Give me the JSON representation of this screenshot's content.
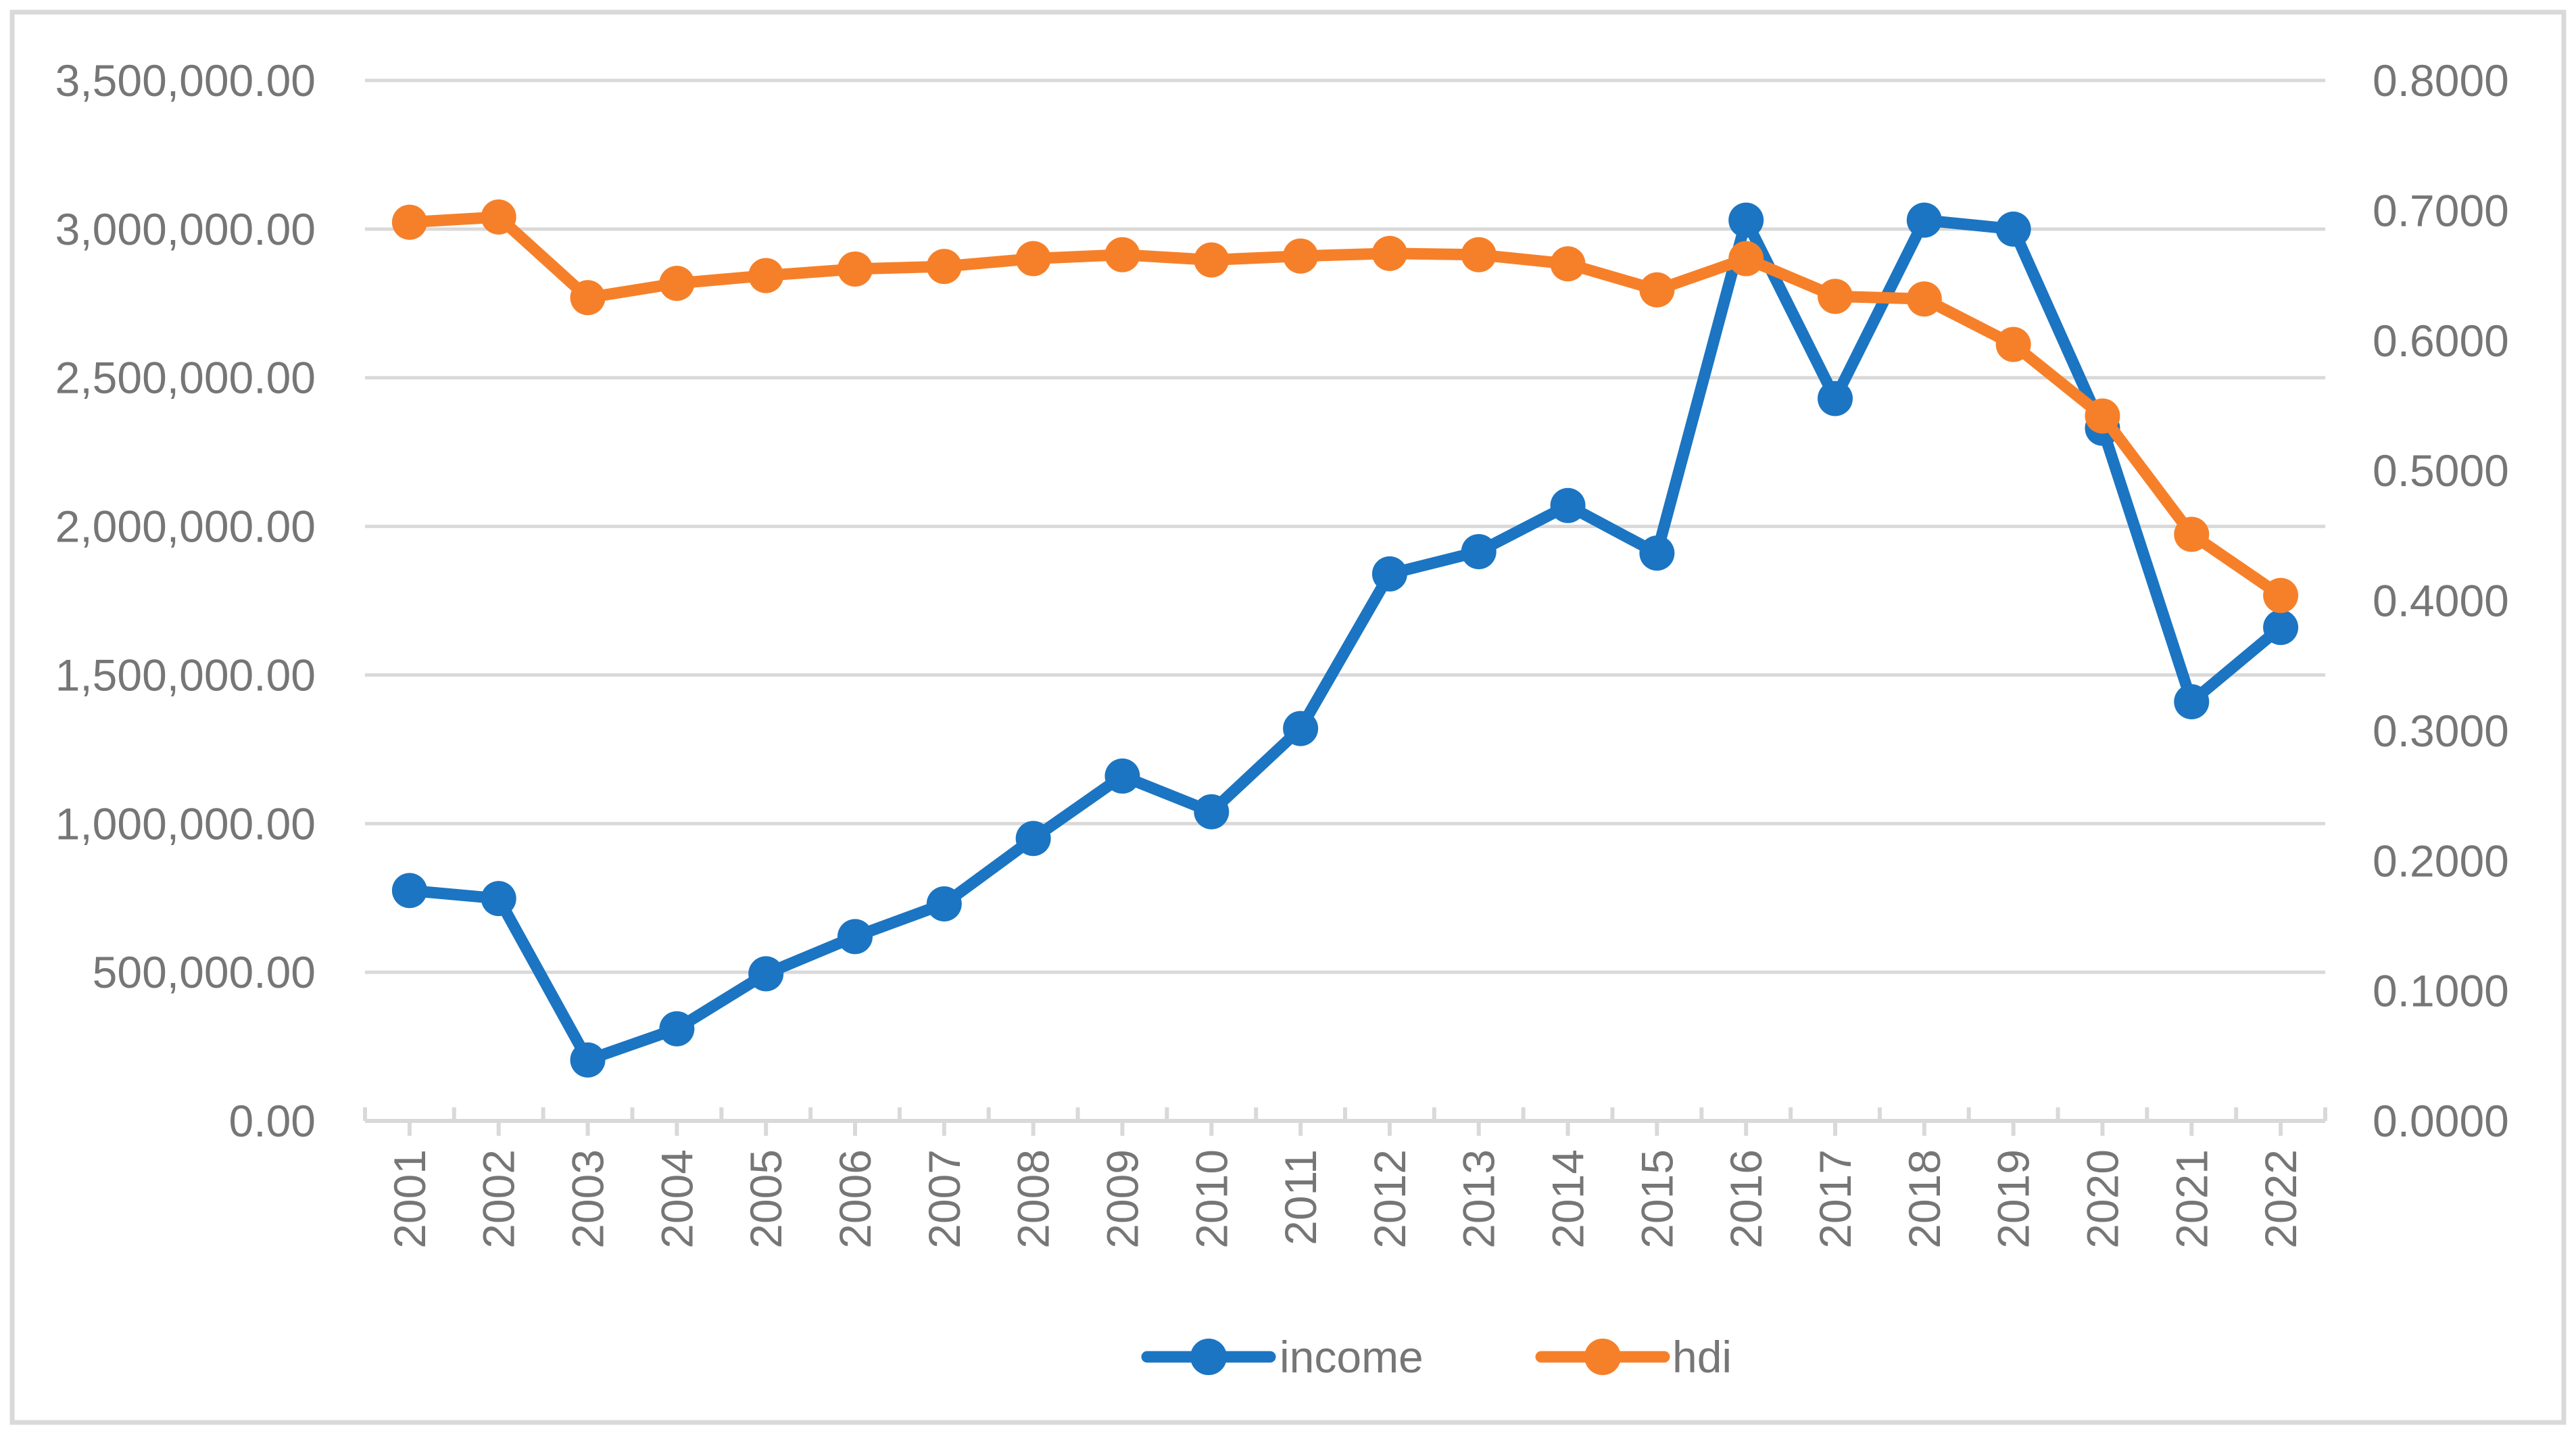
{
  "chart_data": {
    "type": "line",
    "title": "",
    "categories": [
      "2001",
      "2002",
      "2003",
      "2004",
      "2005",
      "2006",
      "2007",
      "2008",
      "2009",
      "2010",
      "2011",
      "2012",
      "2013",
      "2014",
      "2015",
      "2016",
      "2017",
      "2018",
      "2019",
      "2020",
      "2021",
      "2022"
    ],
    "series": [
      {
        "name": "income",
        "axis": "left",
        "color": "#1B75C2",
        "values": [
          775000,
          748000,
          205000,
          310000,
          495000,
          620000,
          730000,
          950000,
          1160000,
          1040000,
          1320000,
          1840000,
          1915000,
          2070000,
          1910000,
          3030000,
          2430000,
          3030000,
          3000000,
          2330000,
          1410000,
          1660000
        ]
      },
      {
        "name": "hdi",
        "axis": "right",
        "color": "#F68029",
        "values": [
          0.691,
          0.695,
          0.633,
          0.644,
          0.65,
          0.655,
          0.657,
          0.663,
          0.666,
          0.662,
          0.665,
          0.667,
          0.666,
          0.659,
          0.639,
          0.663,
          0.634,
          0.632,
          0.597,
          0.542,
          0.451,
          0.404
        ]
      }
    ],
    "y_left_axis": {
      "min": 0,
      "max": 3500000,
      "step": 500000,
      "tick_labels": [
        "3,500,000.00",
        "3,000,000.00",
        "2,500,000.00",
        "2,000,000.00",
        "1,500,000.00",
        "1,000,000.00",
        "500,000.00",
        "0.00"
      ]
    },
    "y_right_axis": {
      "min": 0,
      "max": 0.8,
      "step": 0.1,
      "tick_labels": [
        "0.8000",
        "0.7000",
        "0.6000",
        "0.5000",
        "0.4000",
        "0.3000",
        "0.2000",
        "0.1000",
        "0.0000"
      ]
    },
    "grid": true,
    "legend_position": "bottom"
  },
  "styles": {
    "gridline_color": "#D9D9D9",
    "axis_line_color": "#D9D9D9",
    "border_color": "#D9D9D9",
    "text_color": "#767676",
    "background_color": "#FFFFFF"
  }
}
